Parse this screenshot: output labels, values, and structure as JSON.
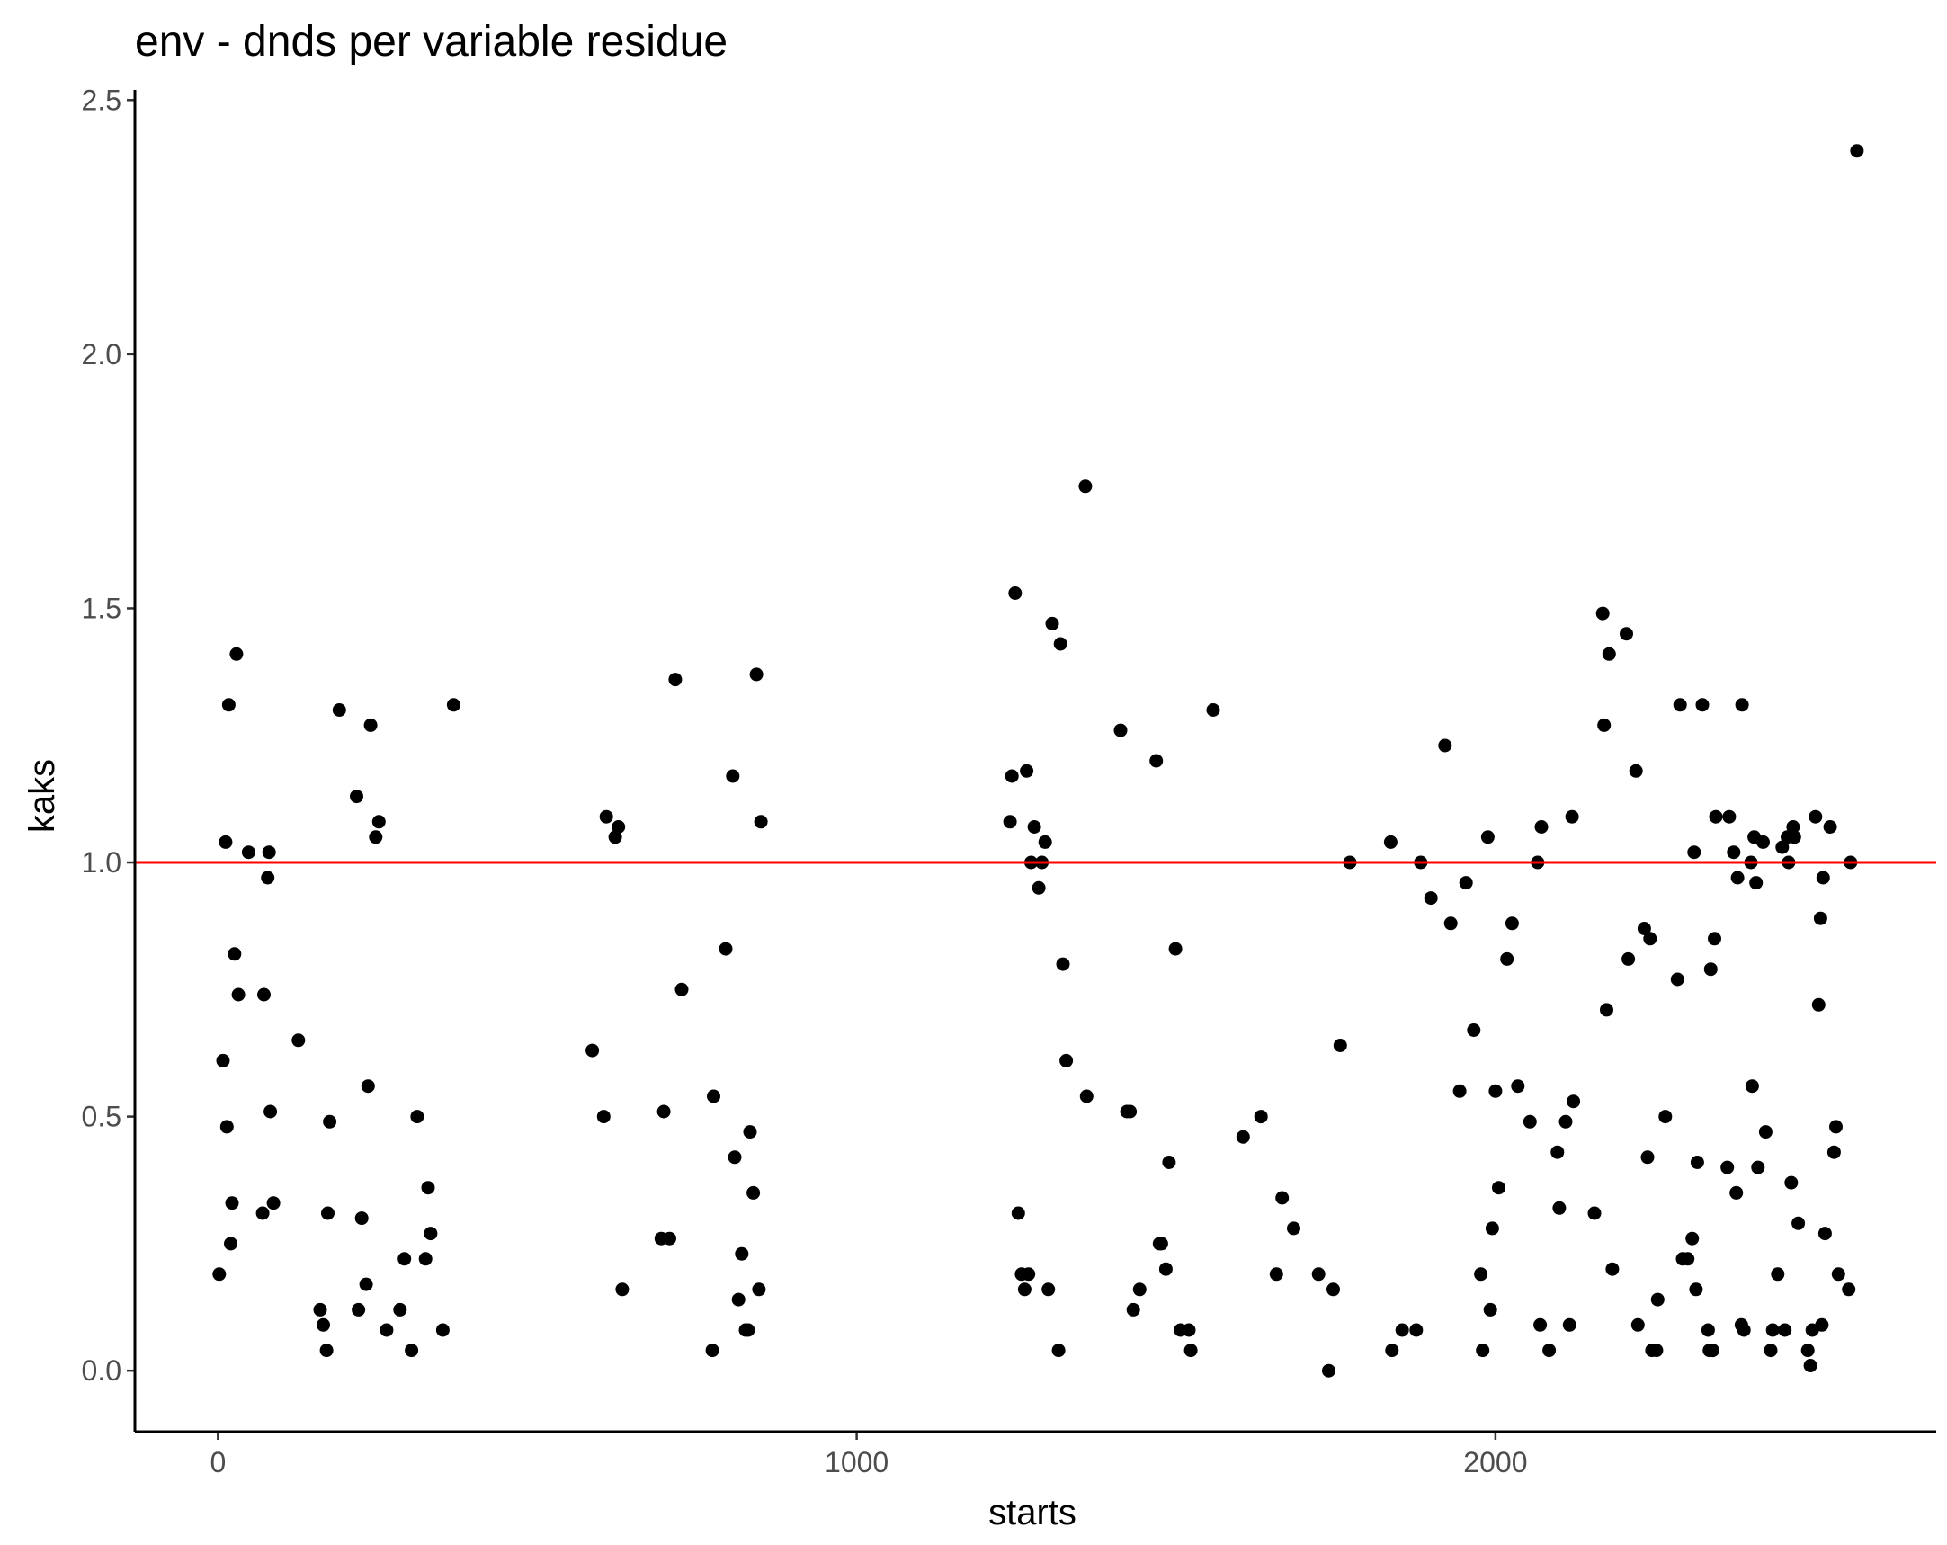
{
  "chart_data": {
    "type": "scatter",
    "title": "env - dnds per variable residue",
    "xlabel": "starts",
    "ylabel": "kaks",
    "xlim": [
      -130,
      2690
    ],
    "ylim": [
      -0.12,
      2.52
    ],
    "x_ticks": [
      0,
      1000,
      2000
    ],
    "x_tick_labels": [
      "0",
      "1000",
      "2000"
    ],
    "y_ticks": [
      0.0,
      0.5,
      1.0,
      1.5,
      2.0,
      2.5
    ],
    "y_tick_labels": [
      "0.0",
      "0.5",
      "1.0",
      "1.5",
      "2.0",
      "2.5"
    ],
    "grid": false,
    "legend": "none",
    "point_color": "#000000",
    "reference_line": {
      "y": 1.0,
      "color": "#ff0000"
    },
    "points": [
      [
        2,
        0.19
      ],
      [
        8,
        0.61
      ],
      [
        12,
        1.04
      ],
      [
        14,
        0.48
      ],
      [
        17,
        1.31
      ],
      [
        20,
        0.25
      ],
      [
        22,
        0.33
      ],
      [
        26,
        0.82
      ],
      [
        29,
        1.41
      ],
      [
        32,
        0.74
      ],
      [
        48,
        1.02
      ],
      [
        70,
        0.31
      ],
      [
        72,
        0.74
      ],
      [
        78,
        0.97
      ],
      [
        80,
        1.02
      ],
      [
        82,
        0.51
      ],
      [
        87,
        0.33
      ],
      [
        126,
        0.65
      ],
      [
        160,
        0.12
      ],
      [
        165,
        0.09
      ],
      [
        170,
        0.04
      ],
      [
        172,
        0.31
      ],
      [
        175,
        0.49
      ],
      [
        190,
        1.3
      ],
      [
        217,
        1.13
      ],
      [
        220,
        0.12
      ],
      [
        225,
        0.3
      ],
      [
        232,
        0.17
      ],
      [
        235,
        0.56
      ],
      [
        239,
        1.27
      ],
      [
        247,
        1.05
      ],
      [
        252,
        1.08
      ],
      [
        264,
        0.08
      ],
      [
        285,
        0.12
      ],
      [
        292,
        0.22
      ],
      [
        303,
        0.04
      ],
      [
        312,
        0.5
      ],
      [
        325,
        0.22
      ],
      [
        329,
        0.36
      ],
      [
        333,
        0.27
      ],
      [
        352,
        0.08
      ],
      [
        369,
        1.31
      ],
      [
        586,
        0.63
      ],
      [
        604,
        0.5
      ],
      [
        608,
        1.09
      ],
      [
        622,
        1.05
      ],
      [
        627,
        1.07
      ],
      [
        633,
        0.16
      ],
      [
        694,
        0.26
      ],
      [
        698,
        0.51
      ],
      [
        707,
        0.26
      ],
      [
        716,
        1.36
      ],
      [
        726,
        0.75
      ],
      [
        774,
        0.04
      ],
      [
        776,
        0.54
      ],
      [
        795,
        0.83
      ],
      [
        806,
        1.17
      ],
      [
        809,
        0.42
      ],
      [
        815,
        0.14
      ],
      [
        820,
        0.23
      ],
      [
        826,
        0.08
      ],
      [
        830,
        0.08
      ],
      [
        833,
        0.47
      ],
      [
        838,
        0.35
      ],
      [
        843,
        1.37
      ],
      [
        847,
        0.16
      ],
      [
        850,
        1.08
      ],
      [
        1240,
        1.08
      ],
      [
        1243,
        1.17
      ],
      [
        1248,
        1.53
      ],
      [
        1253,
        0.31
      ],
      [
        1258,
        0.19
      ],
      [
        1263,
        0.16
      ],
      [
        1266,
        1.18
      ],
      [
        1269,
        0.19
      ],
      [
        1273,
        1.0
      ],
      [
        1278,
        1.07
      ],
      [
        1285,
        0.95
      ],
      [
        1290,
        1.0
      ],
      [
        1295,
        1.04
      ],
      [
        1306,
        1.47
      ],
      [
        1300,
        0.16
      ],
      [
        1316,
        0.04
      ],
      [
        1319,
        1.43
      ],
      [
        1323,
        0.8
      ],
      [
        1328,
        0.61
      ],
      [
        1358,
        1.74
      ],
      [
        1360,
        0.54
      ],
      [
        1413,
        1.26
      ],
      [
        1423,
        0.51
      ],
      [
        1428,
        0.51
      ],
      [
        1433,
        0.12
      ],
      [
        1443,
        0.16
      ],
      [
        1469,
        1.2
      ],
      [
        1474,
        0.25
      ],
      [
        1477,
        0.25
      ],
      [
        1484,
        0.2
      ],
      [
        1489,
        0.41
      ],
      [
        1499,
        0.83
      ],
      [
        1507,
        0.08
      ],
      [
        1520,
        0.08
      ],
      [
        1523,
        0.04
      ],
      [
        1558,
        1.3
      ],
      [
        1605,
        0.46
      ],
      [
        1633,
        0.5
      ],
      [
        1657,
        0.19
      ],
      [
        1666,
        0.34
      ],
      [
        1684,
        0.28
      ],
      [
        1723,
        0.19
      ],
      [
        1739,
        0.0
      ],
      [
        1746,
        0.16
      ],
      [
        1757,
        0.64
      ],
      [
        1772,
        1.0
      ],
      [
        1836,
        1.04
      ],
      [
        1838,
        0.04
      ],
      [
        1854,
        0.08
      ],
      [
        1876,
        0.08
      ],
      [
        1883,
        1.0
      ],
      [
        1899,
        0.93
      ],
      [
        1921,
        1.23
      ],
      [
        1930,
        0.88
      ],
      [
        1944,
        0.55
      ],
      [
        1954,
        0.96
      ],
      [
        1966,
        0.67
      ],
      [
        1977,
        0.19
      ],
      [
        1980,
        0.04
      ],
      [
        1988,
        1.05
      ],
      [
        1992,
        0.12
      ],
      [
        1995,
        0.28
      ],
      [
        2000,
        0.55
      ],
      [
        2005,
        0.36
      ],
      [
        2018,
        0.81
      ],
      [
        2026,
        0.88
      ],
      [
        2035,
        0.56
      ],
      [
        2054,
        0.49
      ],
      [
        2066,
        1.0
      ],
      [
        2070,
        0.09
      ],
      [
        2072,
        1.07
      ],
      [
        2084,
        0.04
      ],
      [
        2097,
        0.43
      ],
      [
        2100,
        0.32
      ],
      [
        2110,
        0.49
      ],
      [
        2116,
        0.09
      ],
      [
        2120,
        1.09
      ],
      [
        2122,
        0.53
      ],
      [
        2155,
        0.31
      ],
      [
        2168,
        1.49
      ],
      [
        2170,
        1.27
      ],
      [
        2174,
        0.71
      ],
      [
        2178,
        1.41
      ],
      [
        2183,
        0.2
      ],
      [
        2205,
        1.45
      ],
      [
        2208,
        0.81
      ],
      [
        2220,
        1.18
      ],
      [
        2223,
        0.09
      ],
      [
        2233,
        0.87
      ],
      [
        2238,
        0.42
      ],
      [
        2242,
        0.85
      ],
      [
        2245,
        0.04
      ],
      [
        2252,
        0.04
      ],
      [
        2254,
        0.14
      ],
      [
        2266,
        0.5
      ],
      [
        2285,
        0.77
      ],
      [
        2289,
        1.31
      ],
      [
        2293,
        0.22
      ],
      [
        2301,
        0.22
      ],
      [
        2308,
        0.26
      ],
      [
        2311,
        1.02
      ],
      [
        2314,
        0.16
      ],
      [
        2316,
        0.41
      ],
      [
        2324,
        1.31
      ],
      [
        2333,
        0.08
      ],
      [
        2335,
        0.04
      ],
      [
        2337,
        0.79
      ],
      [
        2340,
        0.04
      ],
      [
        2343,
        0.85
      ],
      [
        2345,
        1.09
      ],
      [
        2363,
        0.4
      ],
      [
        2366,
        1.09
      ],
      [
        2373,
        1.02
      ],
      [
        2377,
        0.35
      ],
      [
        2379,
        0.97
      ],
      [
        2385,
        0.09
      ],
      [
        2386,
        1.31
      ],
      [
        2389,
        0.08
      ],
      [
        2400,
        1.0
      ],
      [
        2402,
        0.56
      ],
      [
        2405,
        1.05
      ],
      [
        2408,
        0.96
      ],
      [
        2411,
        0.4
      ],
      [
        2419,
        1.04
      ],
      [
        2423,
        0.47
      ],
      [
        2431,
        0.04
      ],
      [
        2434,
        0.08
      ],
      [
        2442,
        0.19
      ],
      [
        2449,
        1.03
      ],
      [
        2453,
        0.08
      ],
      [
        2457,
        1.05
      ],
      [
        2459,
        1.0
      ],
      [
        2463,
        0.37
      ],
      [
        2466,
        1.07
      ],
      [
        2468,
        1.05
      ],
      [
        2474,
        0.29
      ],
      [
        2489,
        0.04
      ],
      [
        2493,
        0.01
      ],
      [
        2496,
        0.08
      ],
      [
        2501,
        1.09
      ],
      [
        2506,
        0.72
      ],
      [
        2509,
        0.89
      ],
      [
        2511,
        0.09
      ],
      [
        2513,
        0.97
      ],
      [
        2516,
        0.27
      ],
      [
        2524,
        1.07
      ],
      [
        2530,
        0.43
      ],
      [
        2533,
        0.48
      ],
      [
        2537,
        0.19
      ],
      [
        2553,
        0.16
      ],
      [
        2556,
        1.0
      ],
      [
        2566,
        2.4
      ]
    ]
  }
}
